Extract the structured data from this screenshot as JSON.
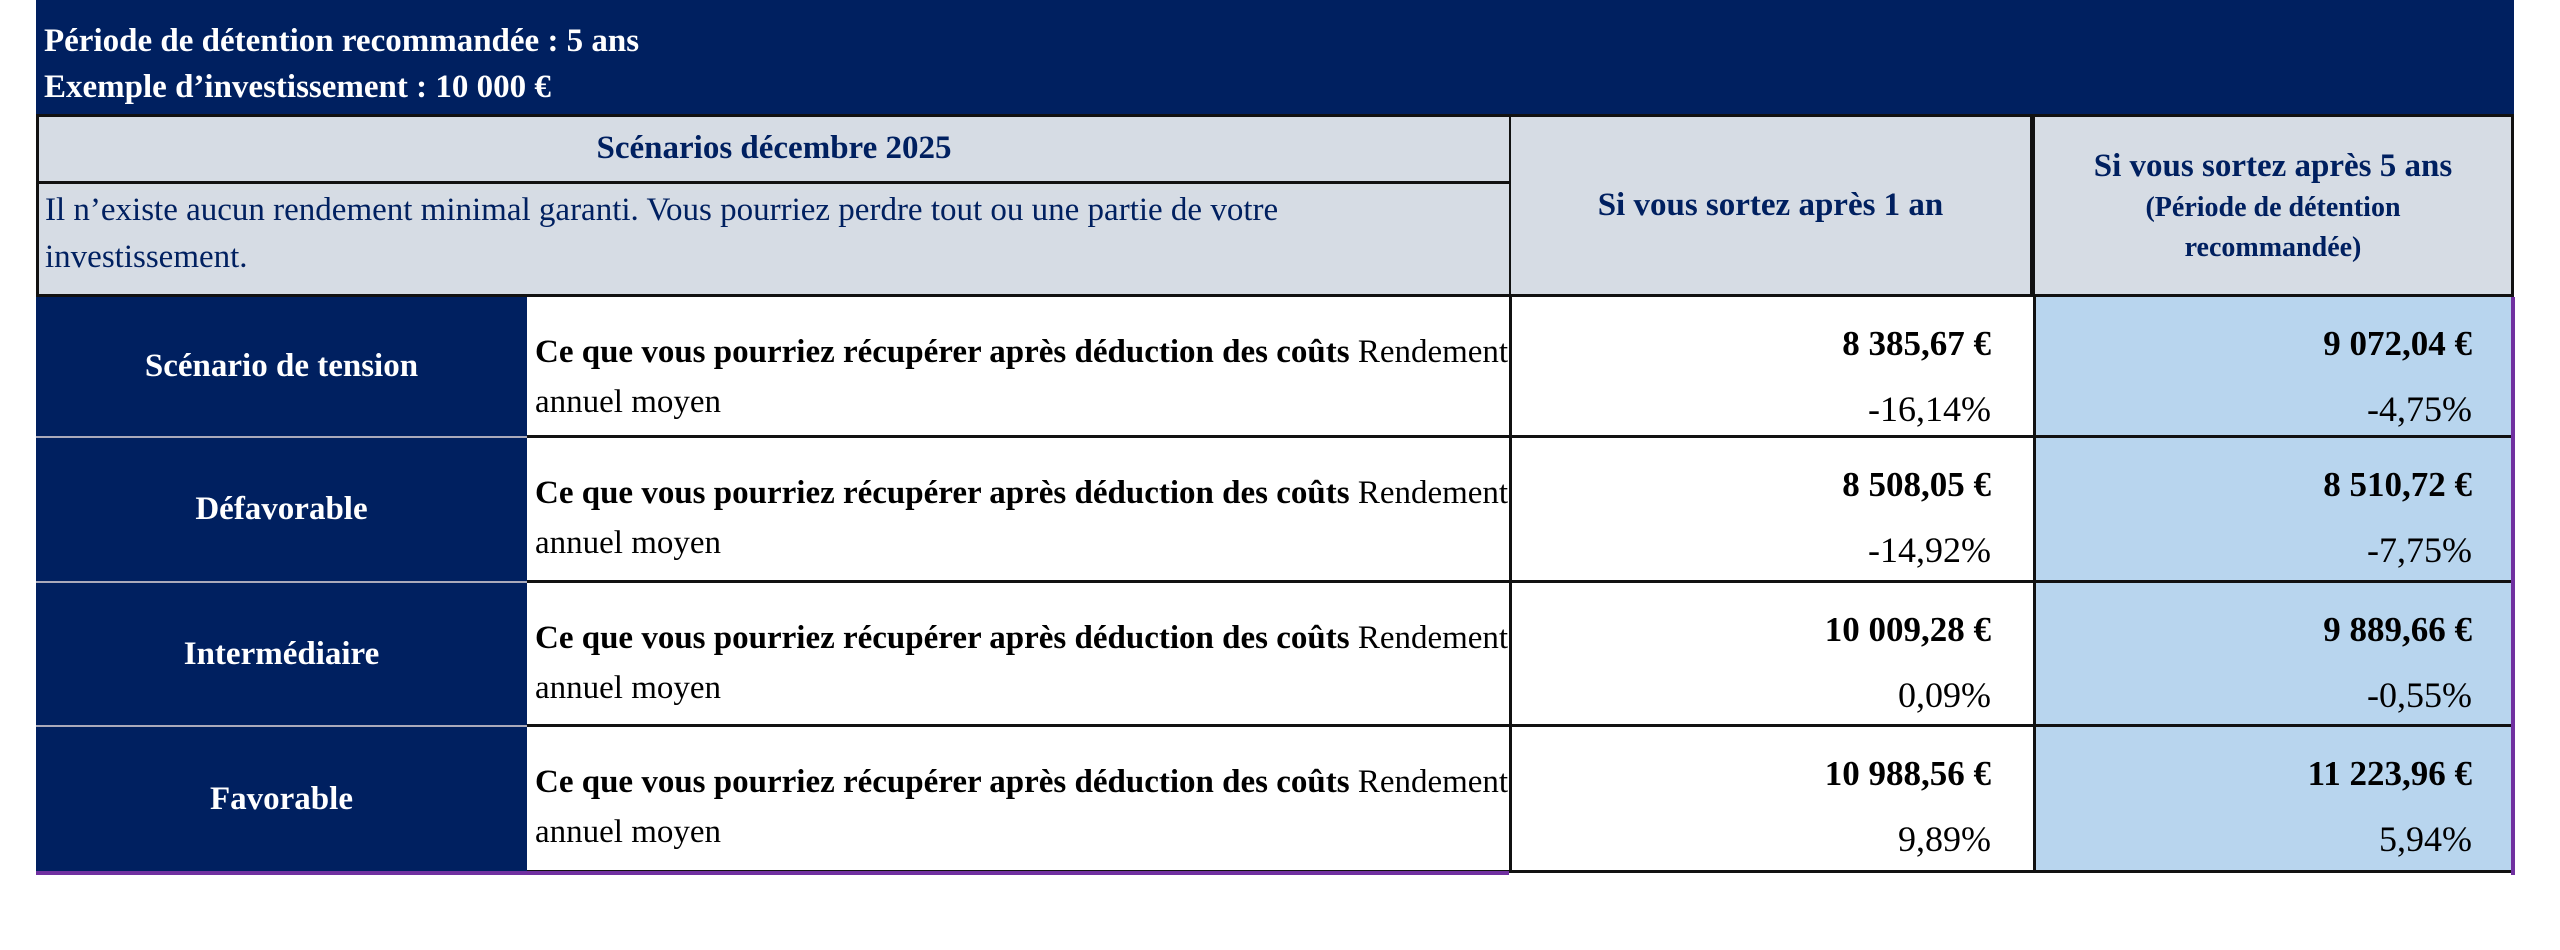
{
  "header": {
    "holding_period": "Période de détention recommandée : 5 ans",
    "investment_example": "Exemple d’investissement : 10 000 €"
  },
  "table_header": {
    "scenarios_title": "Scénarios décembre 2025",
    "warning": "Il n’existe aucun rendement minimal garanti. Vous pourriez perdre tout ou une partie de votre investissement.",
    "col_1_year": "Si vous sortez après 1 an",
    "col_5_years": "Si vous sortez après 5 ans",
    "col_5_years_note": "(Période de détention recommandée)"
  },
  "colors": {
    "navy": "#002060",
    "header_gray": "#d6dce4",
    "highlight_blue": "#b8d5ee"
  },
  "rows": [
    {
      "label": "Scénario de tension",
      "desc_bold": "Ce que vous pourriez récupérer après déduction des coûts",
      "desc": "Rendement annuel moyen",
      "amount_1y": "8 385,67 €",
      "pct_1y": "-16,14%",
      "amount_5y": "9 072,04 €",
      "pct_5y": "-4,75%"
    },
    {
      "label": "Défavorable",
      "desc_bold": "Ce que vous pourriez récupérer après déduction des coûts",
      "desc": "Rendement annuel moyen",
      "amount_1y": "8 508,05 €",
      "pct_1y": "-14,92%",
      "amount_5y": "8 510,72 €",
      "pct_5y": "-7,75%"
    },
    {
      "label": "Intermédiaire",
      "desc_bold": "Ce que vous pourriez récupérer après déduction des coûts",
      "desc": "Rendement annuel moyen",
      "amount_1y": "10 009,28 €",
      "pct_1y": "0,09%",
      "amount_5y": "9 889,66 €",
      "pct_5y": "-0,55%"
    },
    {
      "label": "Favorable",
      "desc_bold": "Ce que vous pourriez récupérer après déduction des coûts",
      "desc": "Rendement annuel moyen",
      "amount_1y": "10 988,56 €",
      "pct_1y": "9,89%",
      "amount_5y": "11 223,96 €",
      "pct_5y": "5,94%"
    }
  ]
}
